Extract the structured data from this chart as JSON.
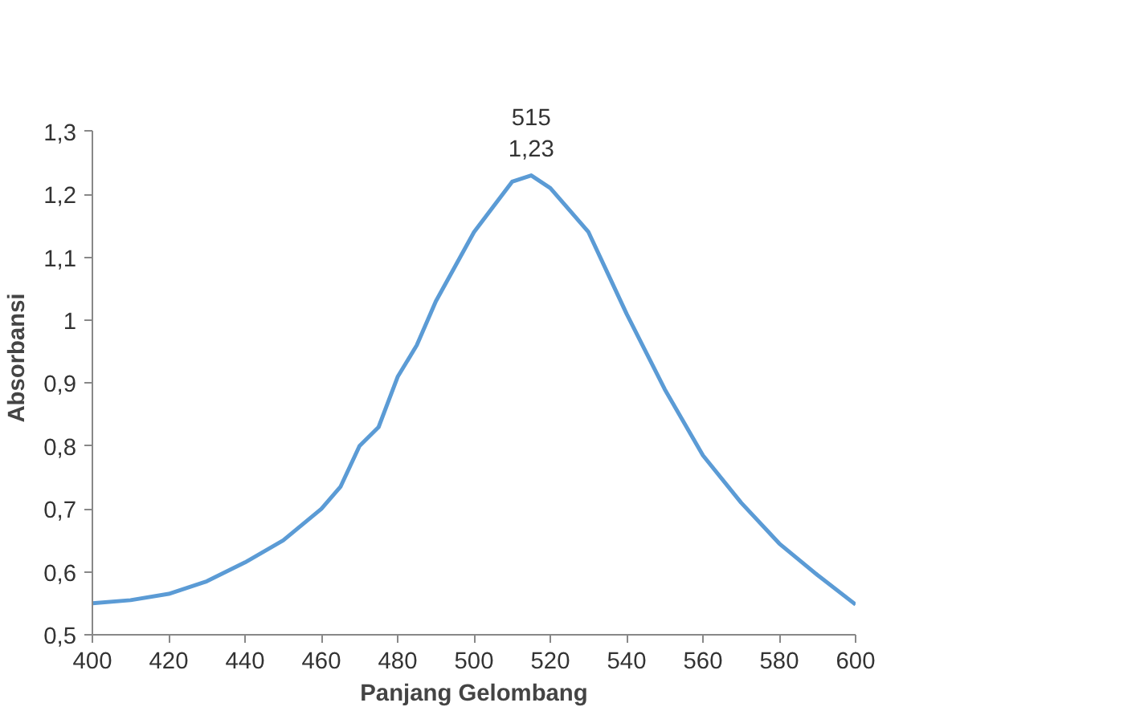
{
  "chart_data": {
    "type": "line",
    "xlabel": "Panjang Gelombang",
    "ylabel": "Absorbansi",
    "x": [
      400,
      410,
      420,
      430,
      440,
      450,
      460,
      465,
      470,
      475,
      480,
      485,
      490,
      500,
      510,
      515,
      520,
      530,
      540,
      550,
      560,
      570,
      580,
      590,
      600
    ],
    "series": [
      {
        "color": "#5b9bd5",
        "values": [
          0.55,
          0.555,
          0.565,
          0.585,
          0.615,
          0.65,
          0.7,
          0.735,
          0.8,
          0.83,
          0.91,
          0.96,
          1.03,
          1.14,
          1.22,
          1.23,
          1.21,
          1.14,
          1.01,
          0.89,
          0.785,
          0.71,
          0.645,
          0.595,
          0.548
        ]
      }
    ],
    "xlim": [
      400,
      600
    ],
    "xticks": [
      400,
      420,
      440,
      460,
      480,
      500,
      520,
      540,
      560,
      580,
      600
    ],
    "ylim": [
      0.5,
      1.3
    ],
    "yticks": [
      {
        "value": 0.5,
        "label": "0,5"
      },
      {
        "value": 0.6,
        "label": "0,6"
      },
      {
        "value": 0.7,
        "label": "0,7"
      },
      {
        "value": 0.8,
        "label": "0,8"
      },
      {
        "value": 0.9,
        "label": "0,9"
      },
      {
        "value": 1,
        "label": "1"
      },
      {
        "value": 1.1,
        "label": "1,1"
      },
      {
        "value": 1.2,
        "label": "1,2"
      },
      {
        "value": 1.3,
        "label": "1,3"
      }
    ],
    "annotations": [
      {
        "text": "515\n1,23",
        "x": 515,
        "y": 1.23
      }
    ],
    "grid": false,
    "marker": "none",
    "line_style": "solid"
  }
}
